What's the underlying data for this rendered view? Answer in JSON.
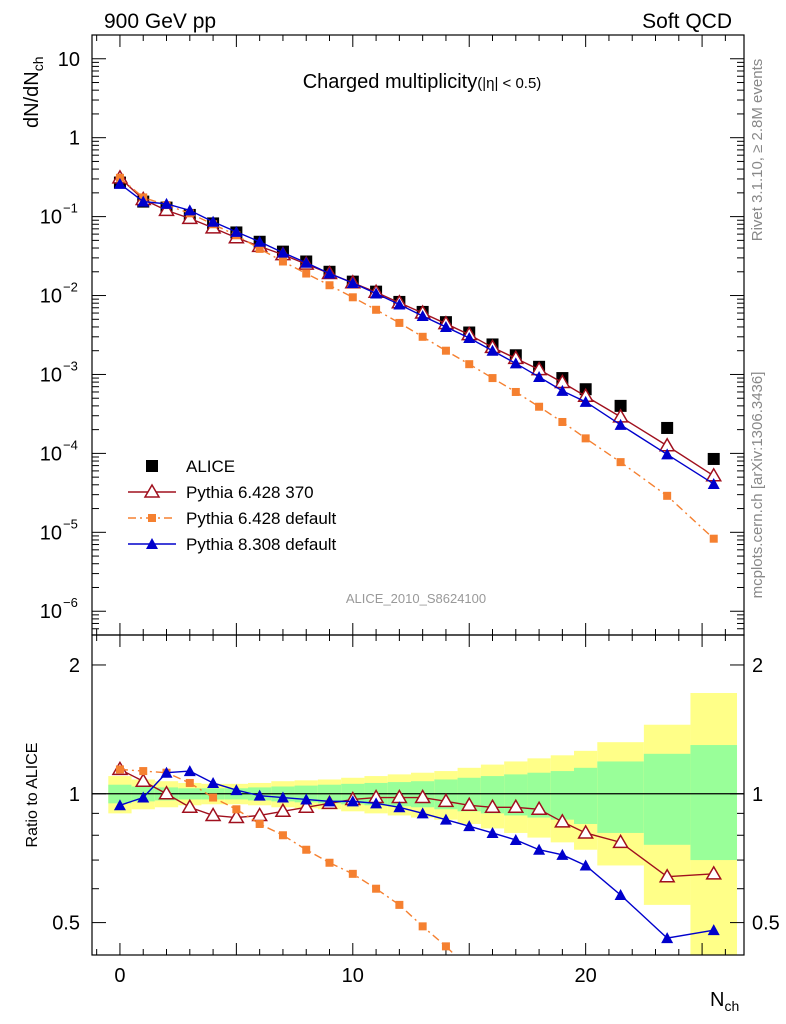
{
  "header": {
    "left": "900 GeV pp",
    "right": "Soft QCD"
  },
  "side_labels": {
    "rivet": "Rivet 3.1.10, ≥ 2.8M events",
    "mcplots": "mcplots.cern.ch [arXiv:1306.3436]"
  },
  "watermark": "ALICE_2010_S8624100",
  "colors": {
    "data": "#000000",
    "pythia6_370": "#a0101e",
    "pythia6_default": "#f58030",
    "pythia8": "#0000cc",
    "band_inner": "#99ff99",
    "band_outer": "#ffff88"
  },
  "chart_data": [
    {
      "type": "scatter",
      "title": "Charged multiplicity",
      "title_suffix": "(|η| < 0.5)",
      "ylabel_main": "dN/dN",
      "ylabel_sub": "ch",
      "xlabel_main": "N",
      "xlabel_sub": "ch",
      "yscale": "log",
      "xlim": [
        -1.2,
        26.8
      ],
      "ylim": [
        5e-07,
        20
      ],
      "ytick_labels": [
        {
          "value": 10,
          "text": "10"
        },
        {
          "value": 1,
          "text": "1"
        },
        {
          "value": 0.1,
          "base": "10",
          "exp": "−1"
        },
        {
          "value": 0.01,
          "base": "10",
          "exp": "−2"
        },
        {
          "value": 0.001,
          "base": "10",
          "exp": "−3"
        },
        {
          "value": 0.0001,
          "base": "10",
          "exp": "−4"
        },
        {
          "value": 1e-05,
          "base": "10",
          "exp": "−5"
        },
        {
          "value": 1e-06,
          "base": "10",
          "exp": "−6"
        }
      ],
      "legend_position": "lower-left",
      "series": [
        {
          "name": "ALICE",
          "marker": "square",
          "x": [
            0,
            1,
            2,
            3,
            4,
            5,
            6,
            7,
            8,
            9,
            10,
            11,
            12,
            13,
            14,
            15,
            16,
            17,
            18,
            19,
            20,
            21.5,
            23.5,
            25.5
          ],
          "y": [
            0.27,
            0.155,
            0.13,
            0.105,
            0.082,
            0.063,
            0.048,
            0.036,
            0.027,
            0.02,
            0.015,
            0.0112,
            0.0083,
            0.0062,
            0.0046,
            0.0034,
            0.0024,
            0.00175,
            0.00125,
            0.0009,
            0.00065,
            0.0004,
            0.00021,
            8.5e-05
          ]
        },
        {
          "name": "Pythia 6.428 370",
          "marker": "open-triangle",
          "line": "solid",
          "x": [
            0,
            1,
            2,
            3,
            4,
            5,
            6,
            7,
            8,
            9,
            10,
            11,
            12,
            13,
            14,
            15,
            16,
            17,
            18,
            19,
            20,
            21.5,
            23.5,
            25.5
          ],
          "y": [
            0.31,
            0.165,
            0.12,
            0.095,
            0.072,
            0.054,
            0.042,
            0.033,
            0.025,
            0.019,
            0.0145,
            0.011,
            0.0081,
            0.006,
            0.0044,
            0.0032,
            0.0022,
            0.0016,
            0.00115,
            0.00079,
            0.00053,
            0.00029,
            0.000125,
            5.2e-05
          ]
        },
        {
          "name": "Pythia 6.428 default",
          "marker": "small-square",
          "line": "dash-dot",
          "x": [
            0,
            1,
            2,
            3,
            4,
            5,
            6,
            7,
            8,
            9,
            10,
            11,
            12,
            13,
            14,
            15,
            16,
            17,
            18,
            19,
            20,
            21.5,
            23.5,
            25.5
          ],
          "y": [
            0.31,
            0.175,
            0.14,
            0.11,
            0.08,
            0.058,
            0.039,
            0.027,
            0.019,
            0.0135,
            0.0095,
            0.0066,
            0.0045,
            0.003,
            0.002,
            0.00135,
            0.0009,
            0.0006,
            0.00039,
            0.00025,
            0.000155,
            7.75e-05,
            2.9e-05,
            8.3e-06
          ]
        },
        {
          "name": "Pythia 8.308 default",
          "marker": "filled-triangle",
          "line": "solid",
          "x": [
            0,
            1,
            2,
            3,
            4,
            5,
            6,
            7,
            8,
            9,
            10,
            11,
            12,
            13,
            14,
            15,
            16,
            17,
            18,
            19,
            20,
            21.5,
            23.5,
            25.5
          ],
          "y": [
            0.26,
            0.155,
            0.145,
            0.12,
            0.086,
            0.064,
            0.048,
            0.035,
            0.026,
            0.019,
            0.0144,
            0.0106,
            0.0077,
            0.0055,
            0.004,
            0.0029,
            0.002,
            0.00138,
            0.00093,
            0.00062,
            0.00045,
            0.00023,
            9.7e-05,
            4.1e-05
          ]
        }
      ]
    },
    {
      "type": "line",
      "ylabel": "Ratio to ALICE",
      "yscale": "log",
      "xlim": [
        -1.2,
        26.8
      ],
      "ylim": [
        0.42,
        2.35
      ],
      "xtick_labels": [
        {
          "value": 0,
          "text": "0"
        },
        {
          "value": 10,
          "text": "10"
        },
        {
          "value": 20,
          "text": "20"
        }
      ],
      "ytick_labels": [
        {
          "value": 0.5,
          "text": "0.5"
        },
        {
          "value": 1,
          "text": "1"
        },
        {
          "value": 2,
          "text": "2"
        }
      ],
      "band_edges": [
        -0.5,
        0.5,
        1.5,
        2.5,
        3.5,
        4.5,
        5.5,
        6.5,
        7.5,
        8.5,
        9.5,
        10.5,
        11.5,
        12.5,
        13.5,
        14.5,
        15.5,
        16.5,
        17.5,
        18.5,
        19.5,
        20.5,
        22.5,
        24.5,
        26.5
      ],
      "band_inner": [
        0.05,
        0.04,
        0.035,
        0.03,
        0.03,
        0.03,
        0.035,
        0.04,
        0.045,
        0.05,
        0.055,
        0.06,
        0.065,
        0.07,
        0.08,
        0.09,
        0.1,
        0.11,
        0.12,
        0.13,
        0.15,
        0.19,
        0.24,
        0.3
      ],
      "band_outer": [
        0.1,
        0.08,
        0.07,
        0.06,
        0.055,
        0.055,
        0.06,
        0.07,
        0.075,
        0.08,
        0.09,
        0.1,
        0.11,
        0.12,
        0.13,
        0.15,
        0.17,
        0.19,
        0.21,
        0.23,
        0.26,
        0.32,
        0.45,
        0.72
      ],
      "series": [
        {
          "name": "Pythia 6.428 370",
          "x": [
            0,
            1,
            2,
            3,
            4,
            5,
            6,
            7,
            8,
            9,
            10,
            11,
            12,
            13,
            14,
            15,
            16,
            17,
            18,
            19,
            20,
            21.5,
            23.5,
            25.5
          ],
          "y": [
            1.14,
            1.07,
            1.0,
            0.93,
            0.89,
            0.88,
            0.89,
            0.91,
            0.93,
            0.95,
            0.97,
            0.98,
            0.98,
            0.98,
            0.96,
            0.94,
            0.93,
            0.93,
            0.92,
            0.86,
            0.81,
            0.77,
            0.64,
            0.65
          ]
        },
        {
          "name": "Pythia 6.428 default",
          "x": [
            0,
            1,
            2,
            3,
            4,
            5,
            6,
            7,
            8,
            9,
            10,
            11,
            12,
            13,
            14,
            15
          ],
          "y": [
            1.14,
            1.13,
            1.12,
            1.06,
            0.98,
            0.92,
            0.85,
            0.8,
            0.74,
            0.69,
            0.65,
            0.6,
            0.55,
            0.49,
            0.44,
            0.39
          ]
        },
        {
          "name": "Pythia 8.308 default",
          "x": [
            0,
            1,
            2,
            3,
            4,
            5,
            6,
            7,
            8,
            9,
            10,
            11,
            12,
            13,
            14,
            15,
            16,
            17,
            18,
            19,
            20,
            21.5,
            23.5,
            25.5
          ],
          "y": [
            0.94,
            0.98,
            1.12,
            1.13,
            1.06,
            1.02,
            0.99,
            0.98,
            0.97,
            0.96,
            0.96,
            0.95,
            0.93,
            0.9,
            0.87,
            0.84,
            0.81,
            0.78,
            0.74,
            0.72,
            0.68,
            0.58,
            0.46,
            0.48
          ]
        }
      ]
    }
  ]
}
